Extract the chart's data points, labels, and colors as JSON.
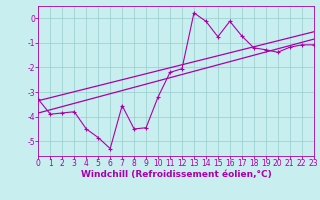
{
  "xlabel": "Windchill (Refroidissement éolien,°C)",
  "bg_color": "#c8eef0",
  "line_color": "#aa00aa",
  "grid_color": "#99cccc",
  "xlim": [
    0,
    23
  ],
  "ylim": [
    -5.6,
    0.5
  ],
  "yticks": [
    0,
    -1,
    -2,
    -3,
    -4,
    -5
  ],
  "xticks": [
    0,
    1,
    2,
    3,
    4,
    5,
    6,
    7,
    8,
    9,
    10,
    11,
    12,
    13,
    14,
    15,
    16,
    17,
    18,
    19,
    20,
    21,
    22,
    23
  ],
  "data_x": [
    0,
    1,
    2,
    3,
    4,
    5,
    6,
    7,
    8,
    9,
    10,
    11,
    12,
    13,
    14,
    15,
    16,
    17,
    18,
    19,
    20,
    21,
    22,
    23
  ],
  "line1_y": [
    -3.3,
    -3.9,
    -3.85,
    -3.8,
    -4.5,
    -4.85,
    -5.3,
    -3.55,
    -4.5,
    -4.45,
    -3.2,
    -2.2,
    -2.05,
    0.22,
    -0.12,
    -0.75,
    -0.12,
    -0.72,
    -1.2,
    -1.28,
    -1.38,
    -1.18,
    -1.08,
    -1.08
  ],
  "line2_x": [
    0,
    23
  ],
  "line2_y": [
    -3.85,
    -0.85
  ],
  "line3_x": [
    0,
    23
  ],
  "line3_y": [
    -3.35,
    -0.55
  ],
  "xlabel_fontsize": 6.5,
  "tick_fontsize": 5.5
}
